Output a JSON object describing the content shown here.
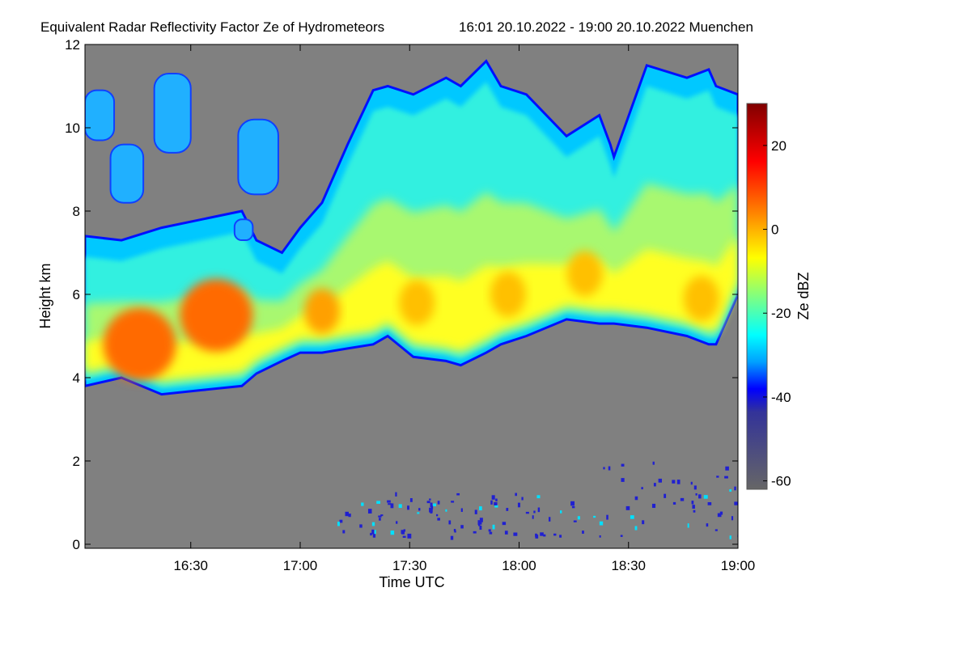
{
  "chart_data": {
    "type": "heatmap",
    "title": "Equivalent Radar Reflectivity Factor Ze of Hydrometeors",
    "subtitle": "16:01 20.10.2022 - 19:00 20.10.2022 Muenchen",
    "xlabel": "Time UTC",
    "ylabel": "Height km",
    "colorbar_label": "Ze dBZ",
    "x_range_minutes_after_1600": [
      1,
      180
    ],
    "y_range_km": [
      0,
      12
    ],
    "x_ticks": [
      {
        "min": 30,
        "label": "16:30"
      },
      {
        "min": 60,
        "label": "17:00"
      },
      {
        "min": 90,
        "label": "17:30"
      },
      {
        "min": 120,
        "label": "18:00"
      },
      {
        "min": 150,
        "label": "18:30"
      },
      {
        "min": 180,
        "label": "19:00"
      }
    ],
    "y_ticks": [
      {
        "v": 0,
        "label": "0"
      },
      {
        "v": 2,
        "label": "2"
      },
      {
        "v": 4,
        "label": "4"
      },
      {
        "v": 6,
        "label": "6"
      },
      {
        "v": 8,
        "label": "8"
      },
      {
        "v": 10,
        "label": "10"
      },
      {
        "v": 12,
        "label": "12"
      }
    ],
    "colorbar_range_dbz": [
      -62,
      30
    ],
    "colorbar_ticks": [
      {
        "v": 20,
        "label": "20"
      },
      {
        "v": 0,
        "label": "0"
      },
      {
        "v": -20,
        "label": "-20"
      },
      {
        "v": -40,
        "label": "-40"
      },
      {
        "v": -60,
        "label": "-60"
      }
    ],
    "background_color": "#808080",
    "main_cloud": {
      "minutes": [
        1,
        11,
        22,
        33,
        44,
        48,
        55,
        60,
        66,
        73,
        80,
        84,
        91,
        100,
        104,
        111,
        115,
        122,
        133,
        142,
        145,
        146,
        155,
        166,
        172,
        174,
        180
      ],
      "top_km": [
        7.4,
        7.3,
        7.6,
        7.8,
        8.0,
        7.3,
        7.0,
        7.6,
        8.2,
        9.6,
        10.9,
        11.0,
        10.8,
        11.2,
        11.0,
        11.6,
        11.0,
        10.8,
        9.8,
        10.3,
        9.6,
        9.3,
        11.5,
        11.2,
        11.4,
        11.0,
        10.8
      ],
      "base_km": [
        3.8,
        4.0,
        3.6,
        3.7,
        3.8,
        4.1,
        4.4,
        4.6,
        4.6,
        4.7,
        4.8,
        5.0,
        4.5,
        4.4,
        4.3,
        4.6,
        4.8,
        5.0,
        5.4,
        5.3,
        5.3,
        5.3,
        5.2,
        5.0,
        4.8,
        4.8,
        6.0
      ]
    },
    "cirrus_patches": [
      {
        "min_from": 1,
        "min_to": 9,
        "base_km": 9.7,
        "top_km": 10.9
      },
      {
        "min_from": 8,
        "min_to": 17,
        "base_km": 8.2,
        "top_km": 9.6
      },
      {
        "min_from": 20,
        "min_to": 30,
        "base_km": 9.4,
        "top_km": 11.3
      },
      {
        "min_from": 43,
        "min_to": 54,
        "base_km": 8.4,
        "top_km": 10.2
      },
      {
        "min_from": 42,
        "min_to": 47,
        "base_km": 7.3,
        "top_km": 7.8
      }
    ],
    "cores": [
      {
        "min": 16,
        "km": 4.8,
        "dbz": 10
      },
      {
        "min": 37,
        "km": 5.5,
        "dbz": 8
      },
      {
        "min": 66,
        "km": 5.6,
        "dbz": 4
      },
      {
        "min": 92,
        "km": 5.8,
        "dbz": 2
      },
      {
        "min": 117,
        "km": 6.0,
        "dbz": 3
      },
      {
        "min": 138,
        "km": 6.5,
        "dbz": 3
      },
      {
        "min": 170,
        "km": 5.9,
        "dbz": 2
      }
    ]
  }
}
